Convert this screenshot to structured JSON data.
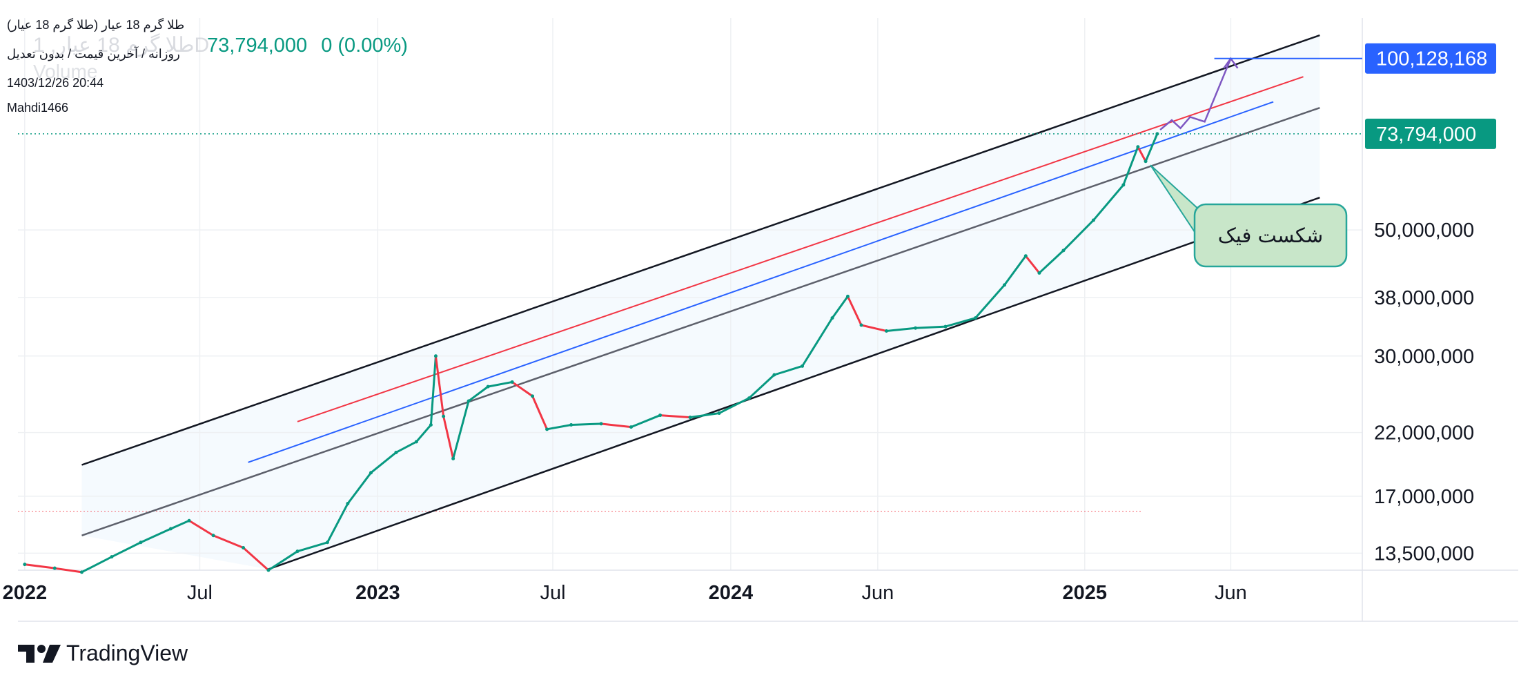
{
  "header": {
    "symbol_name": "طلا گرم 18 عیار (طلا گرم 18 عیار)",
    "timeframe_line": "روزانه / آخرین قیمت / بدون تعدیل",
    "ghost_symbol": "طلا گرم 18 عیار, 1D",
    "ghost_volume": "Volume",
    "last_price": "73,794,000",
    "change": "0 (0.00%)",
    "timestamp": "1403/12/26 20:44",
    "author": "Mahdi1466"
  },
  "brand": {
    "name": "TradingView"
  },
  "annotation": {
    "text": "شکست فیک"
  },
  "colors": {
    "up": "#089981",
    "down": "#f23645",
    "channel_outer": "#131722",
    "channel_mid": "#5d606b",
    "red_line": "#f23645",
    "blue_line": "#2962ff",
    "projection": "#7e57c2",
    "target_badge": "#2962ff",
    "price_badge": "#089981",
    "callout_fill": "#c8e6c9",
    "callout_border": "#26a69a",
    "channel_fill": "#e3f2fd"
  },
  "chart_data": {
    "type": "line",
    "scale": "log",
    "xlabel": "",
    "ylabel": "",
    "x_ticks": [
      {
        "label": "2022",
        "date": "2022-01-01",
        "bold": true
      },
      {
        "label": "Jul",
        "date": "2022-07-01",
        "bold": false
      },
      {
        "label": "2023",
        "date": "2023-01-01",
        "bold": true
      },
      {
        "label": "Jul",
        "date": "2023-07-01",
        "bold": false
      },
      {
        "label": "2024",
        "date": "2024-01-01",
        "bold": true
      },
      {
        "label": "Jun",
        "date": "2024-06-01",
        "bold": false
      },
      {
        "label": "2025",
        "date": "2025-01-01",
        "bold": true
      },
      {
        "label": "Jun",
        "date": "2025-06-01",
        "bold": false
      }
    ],
    "y_ticks": [
      13500000,
      17000000,
      22000000,
      30000000,
      38000000,
      50000000
    ],
    "y_tick_labels": [
      "13,500,000",
      "17,000,000",
      "22,000,000",
      "30,000,000",
      "38,000,000",
      "50,000,000"
    ],
    "price_labels": {
      "current": "73,794,000",
      "target": "100,128,168"
    },
    "current_price": 73794000,
    "target_price": 100128168,
    "series": [
      {
        "name": "",
        "points": [
          [
            "2022-01-01",
            12900000
          ],
          [
            "2022-02-01",
            12700000
          ],
          [
            "2022-03-01",
            12500000
          ],
          [
            "2022-04-01",
            13300000
          ],
          [
            "2022-05-01",
            14100000
          ],
          [
            "2022-06-01",
            14900000
          ],
          [
            "2022-06-20",
            15400000
          ],
          [
            "2022-07-15",
            14500000
          ],
          [
            "2022-08-15",
            13800000
          ],
          [
            "2022-09-10",
            12600000
          ],
          [
            "2022-10-10",
            13600000
          ],
          [
            "2022-11-10",
            14100000
          ],
          [
            "2022-12-01",
            16500000
          ],
          [
            "2022-12-25",
            18700000
          ],
          [
            "2023-01-20",
            20300000
          ],
          [
            "2023-02-10",
            21200000
          ],
          [
            "2023-02-25",
            22700000
          ],
          [
            "2023-03-02",
            30000000
          ],
          [
            "2023-03-10",
            23500000
          ],
          [
            "2023-03-20",
            19800000
          ],
          [
            "2023-04-05",
            25000000
          ],
          [
            "2023-04-25",
            26500000
          ],
          [
            "2023-05-20",
            27000000
          ],
          [
            "2023-06-10",
            25500000
          ],
          [
            "2023-06-25",
            22300000
          ],
          [
            "2023-07-20",
            22700000
          ],
          [
            "2023-08-20",
            22800000
          ],
          [
            "2023-09-20",
            22500000
          ],
          [
            "2023-10-20",
            23600000
          ],
          [
            "2023-11-20",
            23400000
          ],
          [
            "2023-12-20",
            23800000
          ],
          [
            "2024-01-20",
            25300000
          ],
          [
            "2024-02-15",
            27800000
          ],
          [
            "2024-03-15",
            28800000
          ],
          [
            "2024-04-15",
            35000000
          ],
          [
            "2024-05-01",
            38200000
          ],
          [
            "2024-05-15",
            34000000
          ],
          [
            "2024-06-10",
            33200000
          ],
          [
            "2024-07-10",
            33600000
          ],
          [
            "2024-08-10",
            33800000
          ],
          [
            "2024-09-10",
            35000000
          ],
          [
            "2024-10-10",
            40000000
          ],
          [
            "2024-11-01",
            45000000
          ],
          [
            "2024-11-15",
            42000000
          ],
          [
            "2024-12-10",
            46000000
          ],
          [
            "2025-01-10",
            52000000
          ],
          [
            "2025-02-10",
            60000000
          ],
          [
            "2025-02-25",
            70000000
          ],
          [
            "2025-03-05",
            66000000
          ],
          [
            "2025-03-17",
            73794000
          ]
        ]
      }
    ],
    "drawings": {
      "channel_upper": [
        [
          "2022-03-01",
          19300000
        ],
        [
          "2025-09-01",
          110000000
        ]
      ],
      "channel_mid": [
        [
          "2022-03-01",
          14500000
        ],
        [
          "2025-09-01",
          82000000
        ]
      ],
      "channel_lower": [
        [
          "2022-09-10",
          12650000
        ],
        [
          "2025-09-01",
          57000000
        ]
      ],
      "red_line": [
        [
          "2022-10-10",
          23000000
        ],
        [
          "2025-08-15",
          93000000
        ]
      ],
      "blue_line": [
        [
          "2022-08-20",
          19500000
        ],
        [
          "2025-07-15",
          84000000
        ]
      ],
      "projection": [
        [
          "2025-03-20",
          75000000
        ],
        [
          "2025-04-01",
          78000000
        ],
        [
          "2025-04-10",
          75500000
        ],
        [
          "2025-04-20",
          79000000
        ],
        [
          "2025-05-05",
          77500000
        ],
        [
          "2025-06-01",
          100128168
        ]
      ],
      "callout_anchor": [
        "2025-03-10",
        65000000
      ],
      "dotted_support": 16000000
    },
    "grid": true,
    "legend": "top-left"
  }
}
